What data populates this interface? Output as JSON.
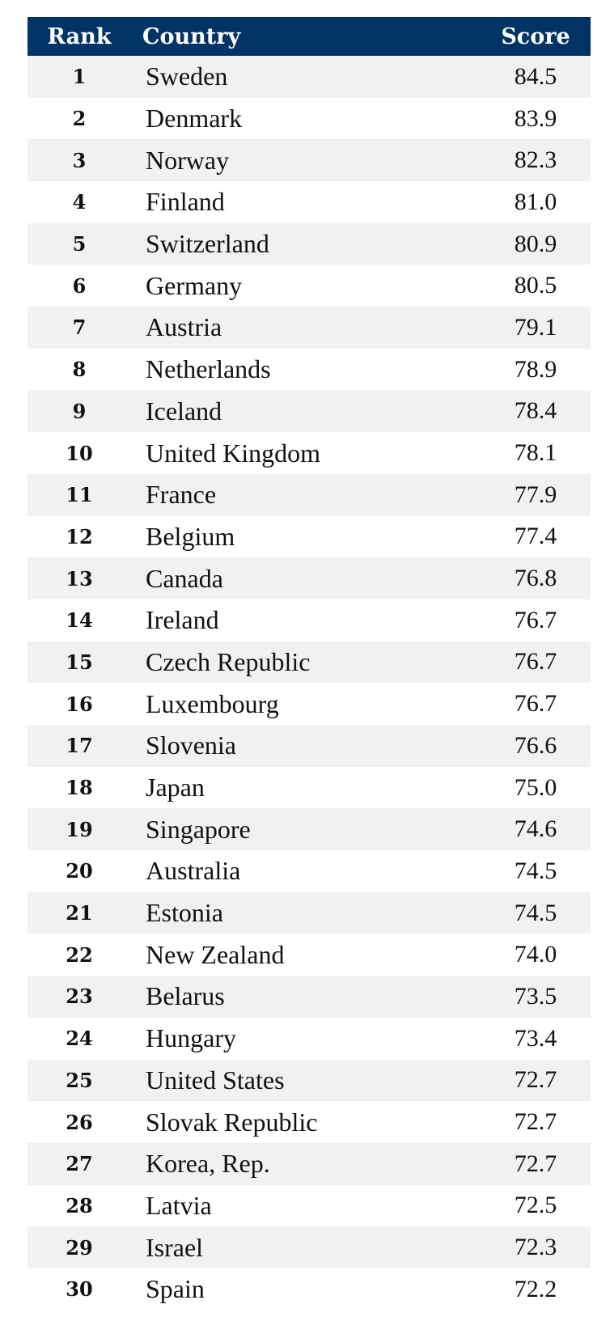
{
  "chart_data": {
    "type": "table",
    "columns": [
      "Rank",
      "Country",
      "Score"
    ],
    "rows": [
      {
        "rank": "1",
        "country": "Sweden",
        "score": "84.5"
      },
      {
        "rank": "2",
        "country": "Denmark",
        "score": "83.9"
      },
      {
        "rank": "3",
        "country": "Norway",
        "score": "82.3"
      },
      {
        "rank": "4",
        "country": "Finland",
        "score": "81.0"
      },
      {
        "rank": "5",
        "country": "Switzerland",
        "score": "80.9"
      },
      {
        "rank": "6",
        "country": "Germany",
        "score": "80.5"
      },
      {
        "rank": "7",
        "country": "Austria",
        "score": "79.1"
      },
      {
        "rank": "8",
        "country": "Netherlands",
        "score": "78.9"
      },
      {
        "rank": "9",
        "country": "Iceland",
        "score": "78.4"
      },
      {
        "rank": "10",
        "country": "United Kingdom",
        "score": "78.1"
      },
      {
        "rank": "11",
        "country": "France",
        "score": "77.9"
      },
      {
        "rank": "12",
        "country": "Belgium",
        "score": "77.4"
      },
      {
        "rank": "13",
        "country": "Canada",
        "score": "76.8"
      },
      {
        "rank": "14",
        "country": "Ireland",
        "score": "76.7"
      },
      {
        "rank": "15",
        "country": "Czech Republic",
        "score": "76.7"
      },
      {
        "rank": "16",
        "country": "Luxembourg",
        "score": "76.7"
      },
      {
        "rank": "17",
        "country": "Slovenia",
        "score": "76.6"
      },
      {
        "rank": "18",
        "country": "Japan",
        "score": "75.0"
      },
      {
        "rank": "19",
        "country": "Singapore",
        "score": "74.6"
      },
      {
        "rank": "20",
        "country": "Australia",
        "score": "74.5"
      },
      {
        "rank": "21",
        "country": "Estonia",
        "score": "74.5"
      },
      {
        "rank": "22",
        "country": "New Zealand",
        "score": "74.0"
      },
      {
        "rank": "23",
        "country": "Belarus",
        "score": "73.5"
      },
      {
        "rank": "24",
        "country": "Hungary",
        "score": "73.4"
      },
      {
        "rank": "25",
        "country": "United States",
        "score": "72.7"
      },
      {
        "rank": "26",
        "country": "Slovak Republic",
        "score": "72.7"
      },
      {
        "rank": "27",
        "country": "Korea, Rep.",
        "score": "72.7"
      },
      {
        "rank": "28",
        "country": "Latvia",
        "score": "72.5"
      },
      {
        "rank": "29",
        "country": "Israel",
        "score": "72.3"
      },
      {
        "rank": "30",
        "country": "Spain",
        "score": "72.2"
      }
    ]
  },
  "colors": {
    "header_background": "#003366",
    "header_text": "#ffffff",
    "row_shaded": "#f1f1f1",
    "row_plain": "#ffffff",
    "text": "#111111"
  }
}
